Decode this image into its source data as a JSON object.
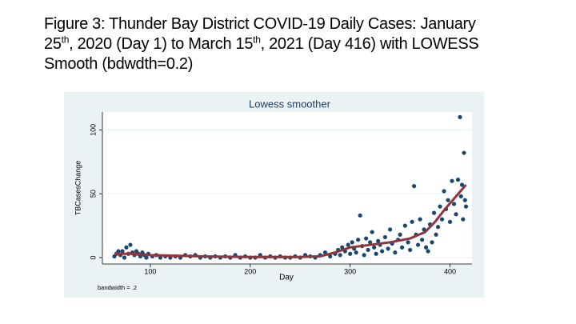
{
  "title_lines": [
    [
      {
        "text": "Figure 3: Thunder Bay District COVID-19 Daily Cases: January"
      }
    ],
    [
      {
        "text": "25"
      },
      {
        "text": "th",
        "sup": true
      },
      {
        "text": ", 2020 (Day 1) to March 15"
      },
      {
        "text": "th",
        "sup": true
      },
      {
        "text": ", 2021 (Day 416) with LOWESS"
      }
    ],
    [
      {
        "text": "Smooth (bdwdth=0.2)"
      }
    ]
  ],
  "chart_data": {
    "type": "scatter",
    "title": "Lowess smoother",
    "x_label": "Day",
    "y_label": "TBCasesChange",
    "note": "bandwidth = .2",
    "xlim": [
      52,
      422
    ],
    "ylim": [
      -5,
      114
    ],
    "xticks": [
      100,
      200,
      300,
      400
    ],
    "yticks": [
      0,
      50,
      100
    ],
    "grid": true,
    "series": [
      {
        "type": "scatter",
        "color": "#1a476f",
        "x": [
          64,
          66,
          68,
          70,
          72,
          74,
          76,
          78,
          80,
          82,
          84,
          86,
          88,
          90,
          92,
          94,
          96,
          98,
          102,
          106,
          110,
          115,
          120,
          125,
          130,
          135,
          140,
          145,
          150,
          155,
          160,
          165,
          170,
          175,
          180,
          185,
          190,
          195,
          200,
          205,
          210,
          215,
          220,
          225,
          230,
          235,
          240,
          245,
          250,
          255,
          260,
          265,
          270,
          275,
          280,
          285,
          288,
          290,
          292,
          295,
          298,
          300,
          302,
          304,
          306,
          308,
          310,
          312,
          314,
          316,
          318,
          320,
          322,
          324,
          326,
          328,
          330,
          332,
          335,
          338,
          340,
          342,
          345,
          348,
          350,
          352,
          355,
          358,
          360,
          362,
          364,
          366,
          368,
          370,
          372,
          374,
          376,
          378,
          380,
          382,
          384,
          386,
          388,
          390,
          392,
          394,
          396,
          398,
          400,
          402,
          404,
          406,
          408,
          410,
          411,
          412,
          413,
          414,
          415,
          416
        ],
        "values": [
          1,
          3,
          5,
          2,
          5,
          0,
          8,
          3,
          10,
          4,
          2,
          5,
          3,
          1,
          4,
          2,
          0,
          3,
          1,
          2,
          0,
          1,
          0,
          1,
          0,
          2,
          1,
          2,
          0,
          1,
          0,
          1,
          0,
          1,
          0,
          2,
          0,
          1,
          0,
          0,
          2,
          0,
          1,
          0,
          1,
          0,
          0,
          1,
          0,
          2,
          1,
          0,
          2,
          4,
          1,
          3,
          6,
          2,
          8,
          5,
          10,
          3,
          12,
          7,
          4,
          14,
          33,
          9,
          2,
          15,
          6,
          12,
          20,
          8,
          3,
          13,
          10,
          5,
          16,
          7,
          22,
          11,
          4,
          14,
          18,
          8,
          25,
          12,
          6,
          28,
          56,
          18,
          10,
          30,
          14,
          22,
          8,
          5,
          26,
          12,
          35,
          18,
          24,
          40,
          30,
          52,
          38,
          45,
          28,
          60,
          42,
          34,
          61,
          110,
          48,
          57,
          30,
          82,
          45,
          40
        ]
      },
      {
        "type": "line",
        "color": "#90353b",
        "x": [
          64,
          80,
          100,
          150,
          200,
          250,
          270,
          285,
          300,
          320,
          340,
          360,
          375,
          385,
          395,
          405,
          416
        ],
        "values": [
          3,
          3,
          2,
          1,
          0.5,
          0.5,
          1,
          4,
          8,
          10,
          12,
          15,
          20,
          28,
          38,
          47,
          57
        ]
      }
    ]
  }
}
